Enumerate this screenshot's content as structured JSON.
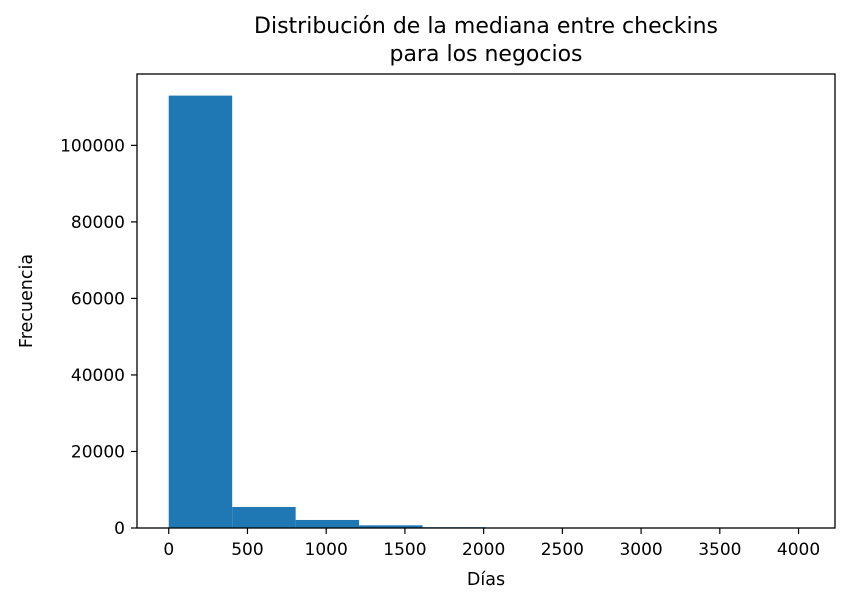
{
  "chart_data": {
    "type": "bar",
    "title_lines": [
      "Distribución de la mediana entre checkins",
      "para los negocios"
    ],
    "xlabel": "Días",
    "ylabel": "Frecuencia",
    "bin_edges": [
      0,
      403,
      806,
      1209,
      1612,
      2015,
      2418,
      2821,
      3224,
      3627,
      4030
    ],
    "values": [
      113000,
      5500,
      2100,
      700,
      200,
      80,
      40,
      20,
      10,
      5
    ],
    "xlim": [
      -201.5,
      4231.5
    ],
    "ylim": [
      0,
      118650
    ],
    "xticks": [
      0,
      500,
      1000,
      1500,
      2000,
      2500,
      3000,
      3500,
      4000
    ],
    "yticks": [
      0,
      20000,
      40000,
      60000,
      80000,
      100000
    ],
    "bar_color": "#1f77b4",
    "grid": false
  }
}
